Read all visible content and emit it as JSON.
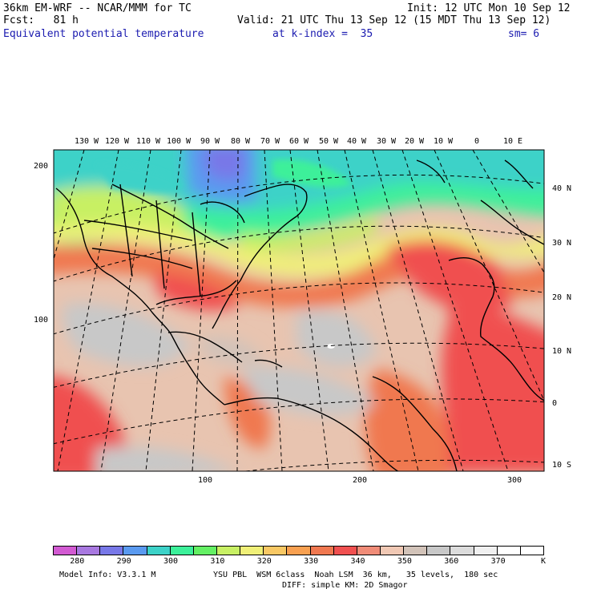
{
  "header": {
    "model_title": "36km EM-WRF -- NCAR/MMM for TC",
    "init": "Init: 12 UTC Mon 10 Sep 12",
    "forecast": "Fcst:   81 h",
    "valid": "Valid: 21 UTC Thu 13 Sep 12 (15 MDT Thu 13 Sep 12)",
    "field_name": "Equivalent potential temperature",
    "k_index": "at k-index =  35",
    "smoothing": "sm= 6"
  },
  "top_lon_labels": [
    "130 W",
    "120 W",
    "110 W",
    "100 W",
    "90 W",
    "80 W",
    "70 W",
    "60 W",
    "50 W",
    "40 W",
    "30 W",
    "20 W",
    "10 W",
    "0",
    "10 E"
  ],
  "right_lat_labels": [
    "40 N",
    "30 N",
    "20 N",
    "10 N",
    "0",
    "10 S"
  ],
  "left_grid_labels": [
    "200",
    "100"
  ],
  "bottom_grid_labels": [
    "100",
    "200",
    "300"
  ],
  "colorbar": {
    "colors": [
      "#d25ad2",
      "#a878e0",
      "#7878e8",
      "#5a9af0",
      "#3cd2c8",
      "#3cf09a",
      "#64f064",
      "#c8f064",
      "#f0f078",
      "#f8c864",
      "#f8a050",
      "#f07850",
      "#f05050",
      "#f08c78",
      "#f0c8b4",
      "#d2c3b9",
      "#c8c8c8",
      "#dcdcdc",
      "#f0f0f0",
      "#ffffff",
      "#ffffff"
    ],
    "labels": [
      "280",
      "290",
      "300",
      "310",
      "320",
      "330",
      "340",
      "350",
      "360",
      "370"
    ],
    "unit": "K"
  },
  "footer": {
    "model_info": "Model Info: V3.3.1 M",
    "physics_1": "YSU PBL  WSM 6class  Noah LSM  36 km,   35 levels,  180 sec",
    "physics_2": "DIFF: simple KM: 2D Smagor"
  }
}
